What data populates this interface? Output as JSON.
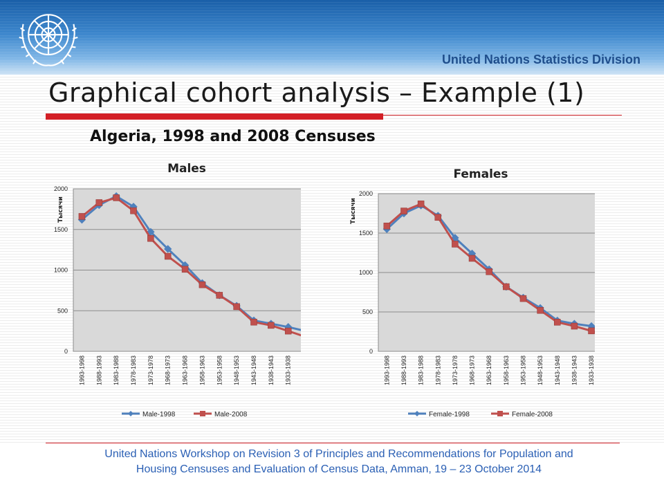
{
  "header": {
    "org_name": "United Nations Statistics Division",
    "logo_icon": "un-emblem-icon"
  },
  "slide": {
    "title": "Graphical cohort analysis – Example (1)",
    "subtitle": "Algeria, 1998 and 2008 Censuses"
  },
  "footer": {
    "line1": "United Nations Workshop on  Revision 3 of Principles and Recommendations for Population and",
    "line2": "Housing Censuses and Evaluation of Census Data, Amman, 19 – 23 October 2014"
  },
  "colors": {
    "series1": "#4f81bd",
    "series2": "#c0504d",
    "plot_bg": "#d9d9d9",
    "accent_red": "#d31f26",
    "footer_text": "#2a5fb4"
  },
  "chart_data": [
    {
      "type": "line",
      "title": "Males",
      "xlabel": "",
      "ylabel": "Тысячи",
      "ylim": [
        0,
        2000
      ],
      "yticks": [
        0,
        500,
        1000,
        1500,
        2000
      ],
      "grid": true,
      "legend": "bottom",
      "categories": [
        "1993-1998",
        "1988-1993",
        "1983-1988",
        "1978-1983",
        "1973-1978",
        "1968-1973",
        "1963-1968",
        "1958-1963",
        "1953-1958",
        "1948-1953",
        "1943-1948",
        "1938-1943",
        "1933-1938",
        "1928-1933"
      ],
      "series": [
        {
          "name": "Male-1998",
          "marker": "diamond",
          "values": [
            1620,
            1800,
            1910,
            1780,
            1470,
            1260,
            1060,
            840,
            690,
            560,
            380,
            340,
            300,
            250
          ]
        },
        {
          "name": "Male-2008",
          "marker": "square",
          "values": [
            1660,
            1830,
            1890,
            1730,
            1390,
            1170,
            1010,
            820,
            690,
            550,
            360,
            320,
            250,
            180
          ]
        }
      ]
    },
    {
      "type": "line",
      "title": "Females",
      "xlabel": "",
      "ylabel": "Тысячи",
      "ylim": [
        0,
        2000
      ],
      "yticks": [
        0,
        500,
        1000,
        1500,
        2000
      ],
      "grid": true,
      "legend": "bottom",
      "categories": [
        "1993-1998",
        "1988-1993",
        "1983-1988",
        "1978-1983",
        "1973-1978",
        "1968-1973",
        "1963-1968",
        "1958-1963",
        "1953-1958",
        "1948-1953",
        "1943-1948",
        "1938-1943",
        "1933-1938",
        "1928-1933"
      ],
      "series": [
        {
          "name": "Female-1998",
          "marker": "diamond",
          "values": [
            1550,
            1750,
            1850,
            1720,
            1440,
            1240,
            1040,
            820,
            680,
            550,
            390,
            350,
            320,
            250
          ]
        },
        {
          "name": "Female-2008",
          "marker": "square",
          "values": [
            1590,
            1780,
            1870,
            1700,
            1360,
            1180,
            1010,
            820,
            670,
            520,
            370,
            320,
            260,
            190
          ]
        }
      ]
    }
  ]
}
